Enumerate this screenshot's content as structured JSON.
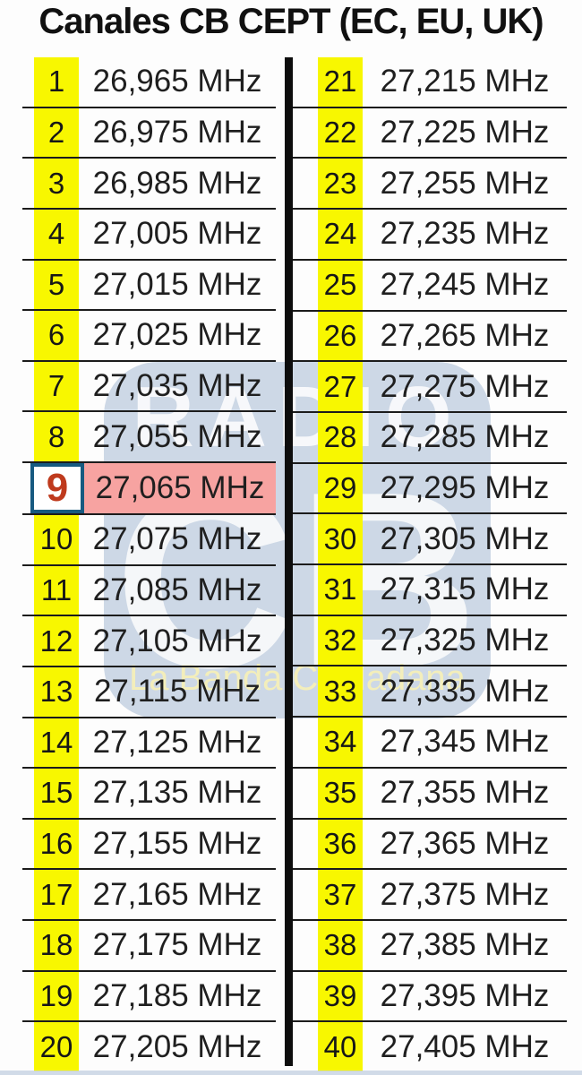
{
  "title": "Canales CB CEPT (EC, EU, UK)",
  "unit": "MHz",
  "watermark": {
    "brand_top": "RADIO",
    "brand_main": "CB",
    "tagline": "La Banda Ciudadana"
  },
  "colors": {
    "band_yellow": "#F8F700",
    "highlight_pink": "#F7A3A1",
    "ch9_red": "#BF3A1D",
    "ch9_border_blue": "#175A80",
    "line_dark": "#1C1C1C",
    "watermark_blue": "#C5D2E2",
    "watermark_sub_yellow": "#F2ECB0"
  },
  "channels_left": [
    {
      "ch": "1",
      "freq": "26,965 MHz"
    },
    {
      "ch": "2",
      "freq": "26,975 MHz"
    },
    {
      "ch": "3",
      "freq": "26,985 MHz"
    },
    {
      "ch": "4",
      "freq": "27,005 MHz"
    },
    {
      "ch": "5",
      "freq": "27,015 MHz"
    },
    {
      "ch": "6",
      "freq": "27,025 MHz"
    },
    {
      "ch": "7",
      "freq": "27,035 MHz"
    },
    {
      "ch": "8",
      "freq": "27,055 MHz"
    },
    {
      "ch": "9",
      "freq": "27,065 MHz",
      "special": true
    },
    {
      "ch": "10",
      "freq": "27,075 MHz"
    },
    {
      "ch": "11",
      "freq": "27,085 MHz"
    },
    {
      "ch": "12",
      "freq": "27,105 MHz"
    },
    {
      "ch": "13",
      "freq": "27,115 MHz"
    },
    {
      "ch": "14",
      "freq": "27,125 MHz"
    },
    {
      "ch": "15",
      "freq": "27,135 MHz"
    },
    {
      "ch": "16",
      "freq": "27,155 MHz"
    },
    {
      "ch": "17",
      "freq": "27,165 MHz"
    },
    {
      "ch": "18",
      "freq": "27,175 MHz"
    },
    {
      "ch": "19",
      "freq": "27,185 MHz"
    },
    {
      "ch": "20",
      "freq": "27,205 MHz"
    }
  ],
  "channels_right": [
    {
      "ch": "21",
      "freq": "27,215 MHz"
    },
    {
      "ch": "22",
      "freq": "27,225 MHz"
    },
    {
      "ch": "23",
      "freq": "27,255 MHz"
    },
    {
      "ch": "24",
      "freq": "27,235 MHz"
    },
    {
      "ch": "25",
      "freq": "27,245 MHz"
    },
    {
      "ch": "26",
      "freq": "27,265 MHz"
    },
    {
      "ch": "27",
      "freq": "27,275 MHz"
    },
    {
      "ch": "28",
      "freq": "27,285 MHz"
    },
    {
      "ch": "29",
      "freq": "27,295 MHz"
    },
    {
      "ch": "30",
      "freq": "27,305 MHz"
    },
    {
      "ch": "31",
      "freq": "27,315 MHz"
    },
    {
      "ch": "32",
      "freq": "27,325 MHz"
    },
    {
      "ch": "33",
      "freq": "27,335 MHz"
    },
    {
      "ch": "34",
      "freq": "27,345 MHz"
    },
    {
      "ch": "35",
      "freq": "27,355 MHz"
    },
    {
      "ch": "36",
      "freq": "27,365 MHz"
    },
    {
      "ch": "37",
      "freq": "27,375 MHz"
    },
    {
      "ch": "38",
      "freq": "27,385 MHz"
    },
    {
      "ch": "39",
      "freq": "27,395 MHz"
    },
    {
      "ch": "40",
      "freq": "27,405 MHz"
    }
  ]
}
